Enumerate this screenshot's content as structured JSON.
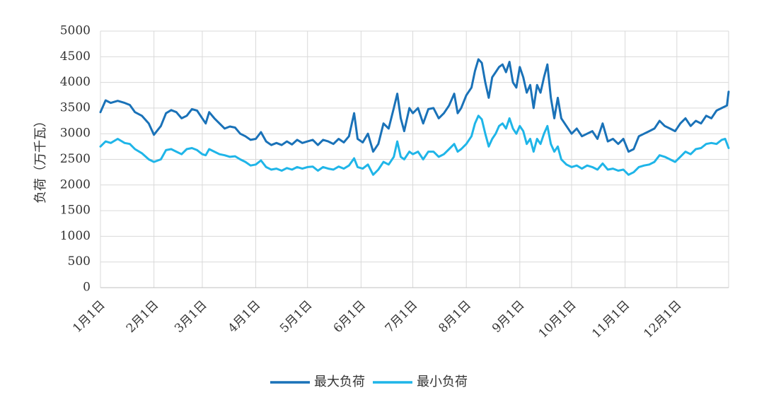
{
  "chart_data": {
    "type": "line",
    "title": "",
    "xlabel": "",
    "ylabel": "负荷（万千瓦）",
    "ylim": [
      0,
      5000
    ],
    "yticks": [
      0,
      500,
      1000,
      1500,
      2000,
      2500,
      3000,
      3500,
      4000,
      4500,
      5000
    ],
    "x_tick_labels": [
      "1月1日",
      "2月1日",
      "3月1日",
      "4月1日",
      "5月1日",
      "6月1日",
      "7月1日",
      "8月1日",
      "9月1日",
      "10月1日",
      "11月1日",
      "12月1日"
    ],
    "x_tick_days": [
      0,
      31,
      59,
      90,
      120,
      151,
      181,
      212,
      243,
      273,
      304,
      334
    ],
    "x_days_total": 364,
    "grid": true,
    "legend_position": "bottom",
    "series": [
      {
        "name": "最大负荷",
        "color": "#1a72b8",
        "points": [
          [
            0,
            3420
          ],
          [
            3,
            3650
          ],
          [
            6,
            3600
          ],
          [
            10,
            3640
          ],
          [
            14,
            3600
          ],
          [
            17,
            3560
          ],
          [
            20,
            3420
          ],
          [
            24,
            3350
          ],
          [
            28,
            3200
          ],
          [
            31,
            2980
          ],
          [
            35,
            3150
          ],
          [
            38,
            3400
          ],
          [
            41,
            3460
          ],
          [
            44,
            3420
          ],
          [
            47,
            3300
          ],
          [
            50,
            3350
          ],
          [
            53,
            3480
          ],
          [
            56,
            3450
          ],
          [
            59,
            3300
          ],
          [
            61,
            3200
          ],
          [
            63,
            3420
          ],
          [
            66,
            3300
          ],
          [
            69,
            3200
          ],
          [
            72,
            3100
          ],
          [
            75,
            3140
          ],
          [
            78,
            3120
          ],
          [
            81,
            3000
          ],
          [
            84,
            2950
          ],
          [
            87,
            2880
          ],
          [
            90,
            2900
          ],
          [
            93,
            3030
          ],
          [
            96,
            2850
          ],
          [
            99,
            2780
          ],
          [
            102,
            2820
          ],
          [
            105,
            2780
          ],
          [
            108,
            2850
          ],
          [
            111,
            2790
          ],
          [
            114,
            2880
          ],
          [
            117,
            2820
          ],
          [
            120,
            2850
          ],
          [
            123,
            2880
          ],
          [
            126,
            2780
          ],
          [
            129,
            2880
          ],
          [
            132,
            2850
          ],
          [
            135,
            2800
          ],
          [
            138,
            2900
          ],
          [
            141,
            2830
          ],
          [
            144,
            2950
          ],
          [
            147,
            3400
          ],
          [
            149,
            2900
          ],
          [
            152,
            2830
          ],
          [
            155,
            3000
          ],
          [
            158,
            2650
          ],
          [
            161,
            2800
          ],
          [
            164,
            3200
          ],
          [
            167,
            3100
          ],
          [
            170,
            3500
          ],
          [
            172,
            3780
          ],
          [
            174,
            3300
          ],
          [
            176,
            3050
          ],
          [
            179,
            3500
          ],
          [
            181,
            3400
          ],
          [
            184,
            3500
          ],
          [
            187,
            3200
          ],
          [
            190,
            3480
          ],
          [
            193,
            3500
          ],
          [
            196,
            3300
          ],
          [
            199,
            3400
          ],
          [
            202,
            3550
          ],
          [
            205,
            3780
          ],
          [
            207,
            3400
          ],
          [
            209,
            3500
          ],
          [
            212,
            3750
          ],
          [
            215,
            3900
          ],
          [
            217,
            4220
          ],
          [
            219,
            4450
          ],
          [
            221,
            4380
          ],
          [
            223,
            4000
          ],
          [
            225,
            3700
          ],
          [
            227,
            4100
          ],
          [
            229,
            4200
          ],
          [
            231,
            4300
          ],
          [
            233,
            4350
          ],
          [
            235,
            4200
          ],
          [
            237,
            4400
          ],
          [
            239,
            4000
          ],
          [
            241,
            3900
          ],
          [
            243,
            4300
          ],
          [
            245,
            4100
          ],
          [
            247,
            3800
          ],
          [
            249,
            3950
          ],
          [
            251,
            3500
          ],
          [
            253,
            3950
          ],
          [
            255,
            3800
          ],
          [
            257,
            4100
          ],
          [
            259,
            4350
          ],
          [
            261,
            3700
          ],
          [
            263,
            3300
          ],
          [
            265,
            3700
          ],
          [
            267,
            3300
          ],
          [
            270,
            3150
          ],
          [
            273,
            3000
          ],
          [
            276,
            3100
          ],
          [
            279,
            2950
          ],
          [
            282,
            3000
          ],
          [
            285,
            3050
          ],
          [
            288,
            2900
          ],
          [
            291,
            3200
          ],
          [
            294,
            2850
          ],
          [
            297,
            2900
          ],
          [
            300,
            2800
          ],
          [
            303,
            2900
          ],
          [
            306,
            2650
          ],
          [
            309,
            2700
          ],
          [
            312,
            2950
          ],
          [
            315,
            3000
          ],
          [
            318,
            3050
          ],
          [
            321,
            3100
          ],
          [
            324,
            3250
          ],
          [
            327,
            3150
          ],
          [
            330,
            3100
          ],
          [
            333,
            3050
          ],
          [
            336,
            3200
          ],
          [
            339,
            3300
          ],
          [
            342,
            3150
          ],
          [
            345,
            3250
          ],
          [
            348,
            3200
          ],
          [
            351,
            3350
          ],
          [
            354,
            3300
          ],
          [
            357,
            3450
          ],
          [
            360,
            3500
          ],
          [
            363,
            3550
          ],
          [
            364,
            3820
          ]
        ]
      },
      {
        "name": "最小负荷",
        "color": "#1fb5e8",
        "points": [
          [
            0,
            2750
          ],
          [
            3,
            2850
          ],
          [
            6,
            2820
          ],
          [
            10,
            2900
          ],
          [
            14,
            2820
          ],
          [
            17,
            2800
          ],
          [
            20,
            2700
          ],
          [
            24,
            2620
          ],
          [
            28,
            2500
          ],
          [
            31,
            2450
          ],
          [
            35,
            2500
          ],
          [
            38,
            2680
          ],
          [
            41,
            2700
          ],
          [
            44,
            2650
          ],
          [
            47,
            2600
          ],
          [
            50,
            2700
          ],
          [
            53,
            2720
          ],
          [
            56,
            2680
          ],
          [
            59,
            2600
          ],
          [
            61,
            2580
          ],
          [
            63,
            2700
          ],
          [
            66,
            2650
          ],
          [
            69,
            2600
          ],
          [
            72,
            2580
          ],
          [
            75,
            2550
          ],
          [
            78,
            2560
          ],
          [
            81,
            2500
          ],
          [
            84,
            2450
          ],
          [
            87,
            2380
          ],
          [
            90,
            2400
          ],
          [
            93,
            2480
          ],
          [
            96,
            2350
          ],
          [
            99,
            2300
          ],
          [
            102,
            2320
          ],
          [
            105,
            2280
          ],
          [
            108,
            2330
          ],
          [
            111,
            2300
          ],
          [
            114,
            2350
          ],
          [
            117,
            2320
          ],
          [
            120,
            2350
          ],
          [
            123,
            2360
          ],
          [
            126,
            2280
          ],
          [
            129,
            2350
          ],
          [
            132,
            2320
          ],
          [
            135,
            2300
          ],
          [
            138,
            2360
          ],
          [
            141,
            2320
          ],
          [
            144,
            2380
          ],
          [
            147,
            2520
          ],
          [
            149,
            2350
          ],
          [
            152,
            2320
          ],
          [
            155,
            2400
          ],
          [
            158,
            2200
          ],
          [
            161,
            2300
          ],
          [
            164,
            2450
          ],
          [
            167,
            2400
          ],
          [
            170,
            2550
          ],
          [
            172,
            2850
          ],
          [
            174,
            2550
          ],
          [
            176,
            2500
          ],
          [
            179,
            2650
          ],
          [
            181,
            2600
          ],
          [
            184,
            2650
          ],
          [
            187,
            2500
          ],
          [
            190,
            2650
          ],
          [
            193,
            2650
          ],
          [
            196,
            2550
          ],
          [
            199,
            2600
          ],
          [
            202,
            2700
          ],
          [
            205,
            2800
          ],
          [
            207,
            2650
          ],
          [
            209,
            2700
          ],
          [
            212,
            2800
          ],
          [
            215,
            2950
          ],
          [
            217,
            3200
          ],
          [
            219,
            3350
          ],
          [
            221,
            3280
          ],
          [
            223,
            3000
          ],
          [
            225,
            2750
          ],
          [
            227,
            2900
          ],
          [
            229,
            3000
          ],
          [
            231,
            3150
          ],
          [
            233,
            3200
          ],
          [
            235,
            3100
          ],
          [
            237,
            3300
          ],
          [
            239,
            3100
          ],
          [
            241,
            3000
          ],
          [
            243,
            3150
          ],
          [
            245,
            3050
          ],
          [
            247,
            2800
          ],
          [
            249,
            2900
          ],
          [
            251,
            2650
          ],
          [
            253,
            2900
          ],
          [
            255,
            2800
          ],
          [
            257,
            3000
          ],
          [
            259,
            3150
          ],
          [
            261,
            2800
          ],
          [
            263,
            2650
          ],
          [
            265,
            2750
          ],
          [
            267,
            2500
          ],
          [
            270,
            2400
          ],
          [
            273,
            2350
          ],
          [
            276,
            2380
          ],
          [
            279,
            2320
          ],
          [
            282,
            2380
          ],
          [
            285,
            2350
          ],
          [
            288,
            2300
          ],
          [
            291,
            2420
          ],
          [
            294,
            2300
          ],
          [
            297,
            2320
          ],
          [
            300,
            2280
          ],
          [
            303,
            2300
          ],
          [
            306,
            2200
          ],
          [
            309,
            2250
          ],
          [
            312,
            2350
          ],
          [
            315,
            2380
          ],
          [
            318,
            2400
          ],
          [
            321,
            2450
          ],
          [
            324,
            2580
          ],
          [
            327,
            2550
          ],
          [
            330,
            2500
          ],
          [
            333,
            2450
          ],
          [
            336,
            2550
          ],
          [
            339,
            2650
          ],
          [
            342,
            2600
          ],
          [
            345,
            2700
          ],
          [
            348,
            2720
          ],
          [
            351,
            2800
          ],
          [
            354,
            2820
          ],
          [
            357,
            2800
          ],
          [
            360,
            2880
          ],
          [
            362,
            2900
          ],
          [
            364,
            2720
          ]
        ]
      }
    ]
  }
}
